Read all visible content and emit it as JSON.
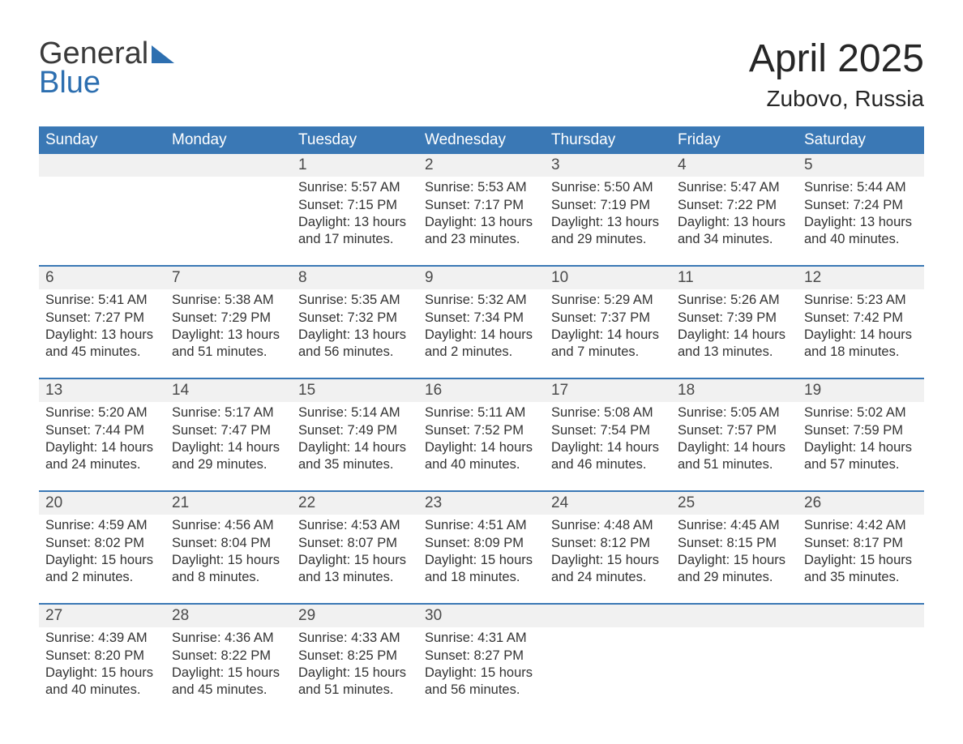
{
  "logo": {
    "top": "General",
    "bottom": "Blue"
  },
  "title": {
    "month": "April 2025",
    "location": "Zubovo, Russia"
  },
  "colors": {
    "header_bg": "#3a78b5",
    "header_text": "#ffffff",
    "daynum_bg": "#f1f1f1",
    "daynum_border": "#3a78b5",
    "body_text": "#333333",
    "logo_blue": "#2d6fb0"
  },
  "days_of_week": [
    "Sunday",
    "Monday",
    "Tuesday",
    "Wednesday",
    "Thursday",
    "Friday",
    "Saturday"
  ],
  "first_weekday_index": 2,
  "days": [
    {
      "n": 1,
      "sunrise": "5:57 AM",
      "sunset": "7:15 PM",
      "daylight": "13 hours and 17 minutes."
    },
    {
      "n": 2,
      "sunrise": "5:53 AM",
      "sunset": "7:17 PM",
      "daylight": "13 hours and 23 minutes."
    },
    {
      "n": 3,
      "sunrise": "5:50 AM",
      "sunset": "7:19 PM",
      "daylight": "13 hours and 29 minutes."
    },
    {
      "n": 4,
      "sunrise": "5:47 AM",
      "sunset": "7:22 PM",
      "daylight": "13 hours and 34 minutes."
    },
    {
      "n": 5,
      "sunrise": "5:44 AM",
      "sunset": "7:24 PM",
      "daylight": "13 hours and 40 minutes."
    },
    {
      "n": 6,
      "sunrise": "5:41 AM",
      "sunset": "7:27 PM",
      "daylight": "13 hours and 45 minutes."
    },
    {
      "n": 7,
      "sunrise": "5:38 AM",
      "sunset": "7:29 PM",
      "daylight": "13 hours and 51 minutes."
    },
    {
      "n": 8,
      "sunrise": "5:35 AM",
      "sunset": "7:32 PM",
      "daylight": "13 hours and 56 minutes."
    },
    {
      "n": 9,
      "sunrise": "5:32 AM",
      "sunset": "7:34 PM",
      "daylight": "14 hours and 2 minutes."
    },
    {
      "n": 10,
      "sunrise": "5:29 AM",
      "sunset": "7:37 PM",
      "daylight": "14 hours and 7 minutes."
    },
    {
      "n": 11,
      "sunrise": "5:26 AM",
      "sunset": "7:39 PM",
      "daylight": "14 hours and 13 minutes."
    },
    {
      "n": 12,
      "sunrise": "5:23 AM",
      "sunset": "7:42 PM",
      "daylight": "14 hours and 18 minutes."
    },
    {
      "n": 13,
      "sunrise": "5:20 AM",
      "sunset": "7:44 PM",
      "daylight": "14 hours and 24 minutes."
    },
    {
      "n": 14,
      "sunrise": "5:17 AM",
      "sunset": "7:47 PM",
      "daylight": "14 hours and 29 minutes."
    },
    {
      "n": 15,
      "sunrise": "5:14 AM",
      "sunset": "7:49 PM",
      "daylight": "14 hours and 35 minutes."
    },
    {
      "n": 16,
      "sunrise": "5:11 AM",
      "sunset": "7:52 PM",
      "daylight": "14 hours and 40 minutes."
    },
    {
      "n": 17,
      "sunrise": "5:08 AM",
      "sunset": "7:54 PM",
      "daylight": "14 hours and 46 minutes."
    },
    {
      "n": 18,
      "sunrise": "5:05 AM",
      "sunset": "7:57 PM",
      "daylight": "14 hours and 51 minutes."
    },
    {
      "n": 19,
      "sunrise": "5:02 AM",
      "sunset": "7:59 PM",
      "daylight": "14 hours and 57 minutes."
    },
    {
      "n": 20,
      "sunrise": "4:59 AM",
      "sunset": "8:02 PM",
      "daylight": "15 hours and 2 minutes."
    },
    {
      "n": 21,
      "sunrise": "4:56 AM",
      "sunset": "8:04 PM",
      "daylight": "15 hours and 8 minutes."
    },
    {
      "n": 22,
      "sunrise": "4:53 AM",
      "sunset": "8:07 PM",
      "daylight": "15 hours and 13 minutes."
    },
    {
      "n": 23,
      "sunrise": "4:51 AM",
      "sunset": "8:09 PM",
      "daylight": "15 hours and 18 minutes."
    },
    {
      "n": 24,
      "sunrise": "4:48 AM",
      "sunset": "8:12 PM",
      "daylight": "15 hours and 24 minutes."
    },
    {
      "n": 25,
      "sunrise": "4:45 AM",
      "sunset": "8:15 PM",
      "daylight": "15 hours and 29 minutes."
    },
    {
      "n": 26,
      "sunrise": "4:42 AM",
      "sunset": "8:17 PM",
      "daylight": "15 hours and 35 minutes."
    },
    {
      "n": 27,
      "sunrise": "4:39 AM",
      "sunset": "8:20 PM",
      "daylight": "15 hours and 40 minutes."
    },
    {
      "n": 28,
      "sunrise": "4:36 AM",
      "sunset": "8:22 PM",
      "daylight": "15 hours and 45 minutes."
    },
    {
      "n": 29,
      "sunrise": "4:33 AM",
      "sunset": "8:25 PM",
      "daylight": "15 hours and 51 minutes."
    },
    {
      "n": 30,
      "sunrise": "4:31 AM",
      "sunset": "8:27 PM",
      "daylight": "15 hours and 56 minutes."
    }
  ],
  "labels": {
    "sunrise": "Sunrise:",
    "sunset": "Sunset:",
    "daylight": "Daylight:"
  }
}
